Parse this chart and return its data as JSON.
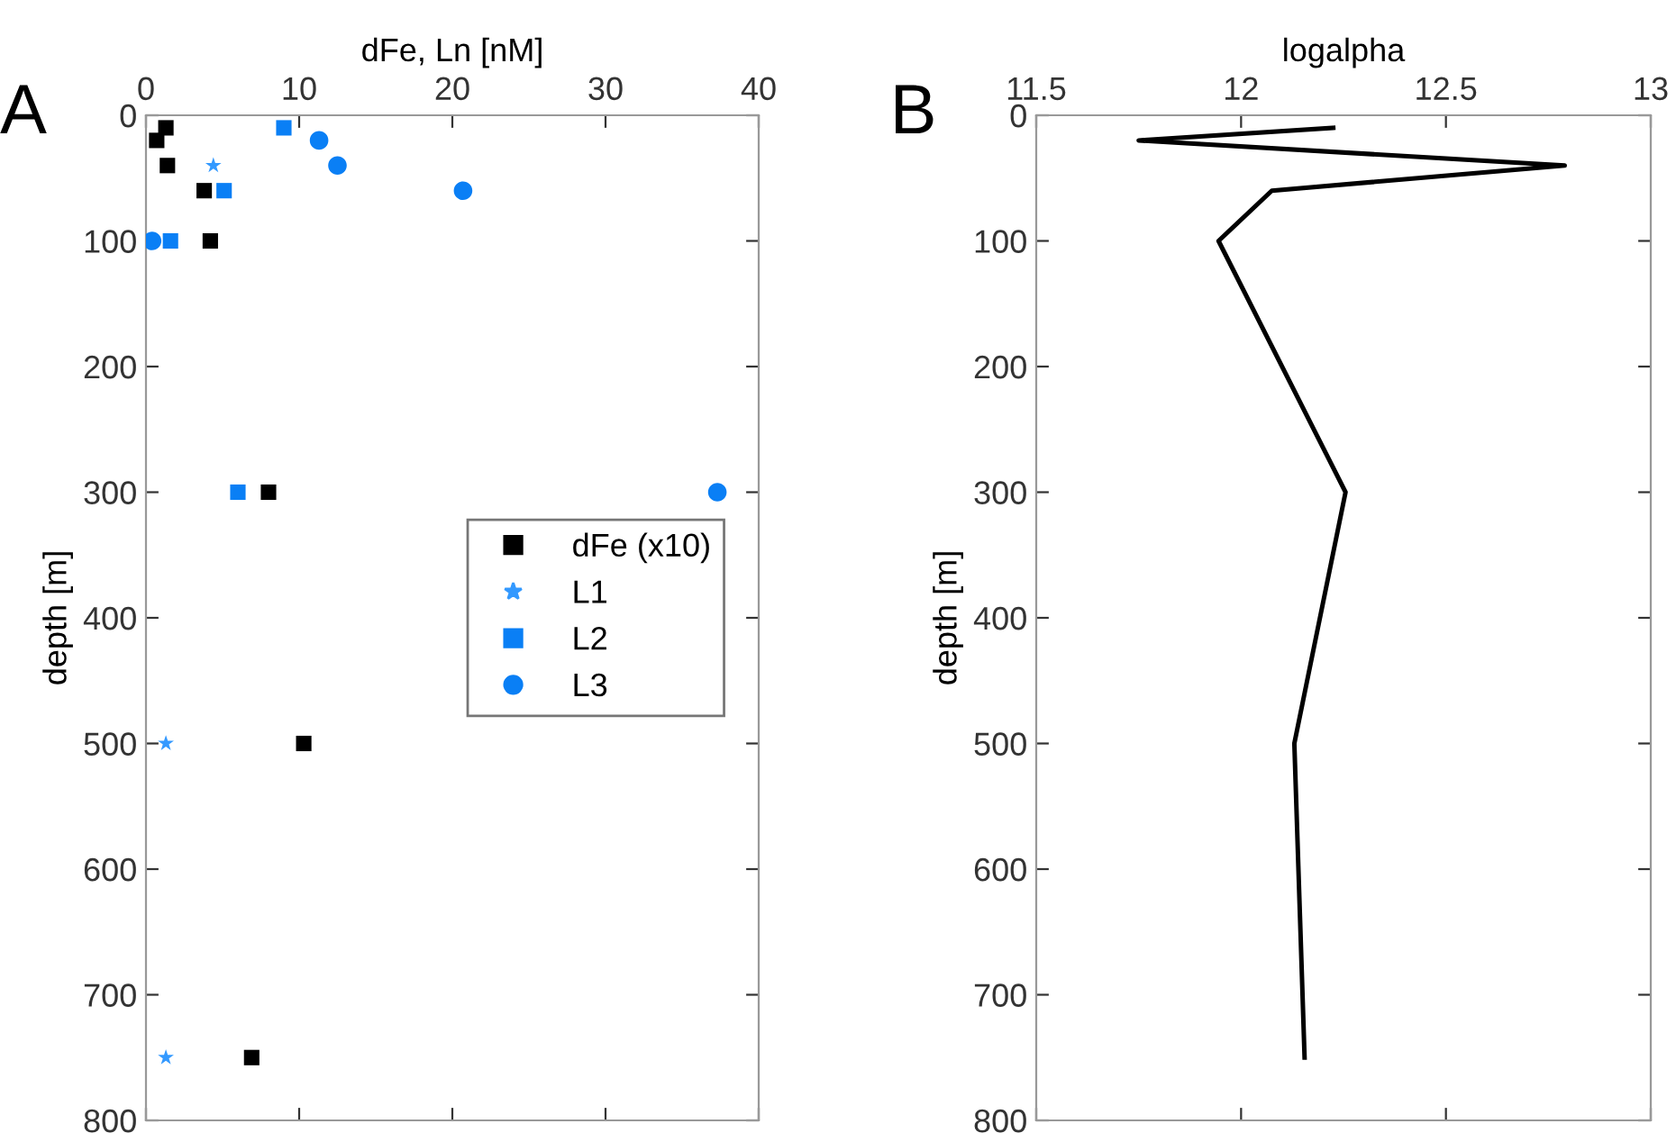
{
  "chart_data": [
    {
      "type": "scatter",
      "xlabel": "dFe, Ln [nM]",
      "ylabel": "depth [m]",
      "annotations": [
        "A"
      ],
      "xlim": [
        0,
        40
      ],
      "xticks": [
        0,
        10,
        20,
        30,
        40
      ],
      "ylim": [
        800,
        0
      ],
      "yticks": [
        0,
        100,
        200,
        300,
        400,
        500,
        600,
        700,
        800
      ],
      "grid": false,
      "legend": "right",
      "series": [
        {
          "name": "dFe (x10)",
          "color": "#000000",
          "marker": "square",
          "x": [
            1.3,
            0.7,
            1.4,
            3.8,
            4.2,
            8.0,
            10.3,
            6.9
          ],
          "values": [
            10,
            20,
            40,
            60,
            100,
            300,
            500,
            750
          ]
        },
        {
          "name": "L1",
          "color": "#3399ff",
          "marker": "star",
          "x": [
            4.4,
            1.3,
            1.3
          ],
          "values": [
            40,
            500,
            750
          ]
        },
        {
          "name": "L2",
          "color": "#0a7ff5",
          "marker": "square",
          "x": [
            9.0,
            5.1,
            1.6,
            6.0
          ],
          "values": [
            10,
            60,
            100,
            300
          ]
        },
        {
          "name": "L3",
          "color": "#0a7ff5",
          "marker": "circle",
          "x": [
            11.3,
            12.5,
            20.7,
            0.4,
            37.3
          ],
          "values": [
            20,
            40,
            60,
            100,
            300
          ]
        }
      ]
    },
    {
      "type": "line",
      "xlabel": "logalpha",
      "ylabel": "depth [m]",
      "annotations": [
        "B"
      ],
      "xlim": [
        11.5,
        13
      ],
      "xticks": [
        11.5,
        12,
        12.5,
        13
      ],
      "ylim": [
        800,
        0
      ],
      "yticks": [
        0,
        100,
        200,
        300,
        400,
        500,
        600,
        700,
        800
      ],
      "grid": false,
      "legend": false,
      "series": [
        {
          "color": "#000000",
          "marker": "none",
          "line_style": "solid",
          "x": [
            12.225,
            11.75,
            12.79,
            12.075,
            11.945,
            12.255,
            12.13,
            12.155
          ],
          "values": [
            10,
            20,
            40,
            60,
            100,
            300,
            500,
            750
          ]
        }
      ]
    }
  ]
}
